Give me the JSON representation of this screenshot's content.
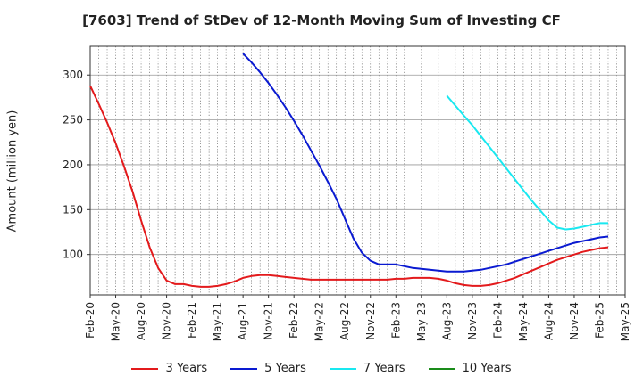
{
  "chart_data": {
    "type": "line",
    "title": "[7603]  Trend of StDev of 12-Month Moving Sum of Investing CF",
    "ylabel": "Amount (million yen)",
    "xlabel": "",
    "x_ticks": [
      "Feb-20",
      "May-20",
      "Aug-20",
      "Nov-20",
      "Feb-21",
      "May-21",
      "Aug-21",
      "Nov-21",
      "Feb-22",
      "May-22",
      "Aug-22",
      "Nov-22",
      "Feb-23",
      "May-23",
      "Aug-23",
      "Nov-23",
      "Feb-24",
      "May-24",
      "Aug-24",
      "Nov-24",
      "Feb-25",
      "May-25"
    ],
    "y_ticks": [
      100,
      150,
      200,
      250,
      300
    ],
    "ylim": [
      55,
      332
    ],
    "grid": true,
    "legend_position": "bottom",
    "series": [
      {
        "name": "3 Years",
        "color": "#e31a1c",
        "points": [
          [
            "2020-02",
            288
          ],
          [
            "2020-03",
            268
          ],
          [
            "2020-04",
            247
          ],
          [
            "2020-05",
            224
          ],
          [
            "2020-06",
            198
          ],
          [
            "2020-07",
            170
          ],
          [
            "2020-08",
            138
          ],
          [
            "2020-09",
            108
          ],
          [
            "2020-10",
            85
          ],
          [
            "2020-11",
            71
          ],
          [
            "2020-12",
            67
          ],
          [
            "2021-01",
            67
          ],
          [
            "2021-02",
            65
          ],
          [
            "2021-03",
            64
          ],
          [
            "2021-04",
            64
          ],
          [
            "2021-05",
            65
          ],
          [
            "2021-06",
            67
          ],
          [
            "2021-07",
            70
          ],
          [
            "2021-08",
            74
          ],
          [
            "2021-09",
            76
          ],
          [
            "2021-10",
            77
          ],
          [
            "2021-11",
            77
          ],
          [
            "2021-12",
            76
          ],
          [
            "2022-01",
            75
          ],
          [
            "2022-02",
            74
          ],
          [
            "2022-03",
            73
          ],
          [
            "2022-04",
            72
          ],
          [
            "2022-05",
            72
          ],
          [
            "2022-06",
            72
          ],
          [
            "2022-07",
            72
          ],
          [
            "2022-08",
            72
          ],
          [
            "2022-09",
            72
          ],
          [
            "2022-10",
            72
          ],
          [
            "2022-11",
            72
          ],
          [
            "2022-12",
            72
          ],
          [
            "2023-01",
            72
          ],
          [
            "2023-02",
            73
          ],
          [
            "2023-03",
            73
          ],
          [
            "2023-04",
            74
          ],
          [
            "2023-05",
            74
          ],
          [
            "2023-06",
            74
          ],
          [
            "2023-07",
            73
          ],
          [
            "2023-08",
            71
          ],
          [
            "2023-09",
            68
          ],
          [
            "2023-10",
            66
          ],
          [
            "2023-11",
            65
          ],
          [
            "2023-12",
            65
          ],
          [
            "2024-01",
            66
          ],
          [
            "2024-02",
            68
          ],
          [
            "2024-03",
            71
          ],
          [
            "2024-04",
            74
          ],
          [
            "2024-05",
            78
          ],
          [
            "2024-06",
            82
          ],
          [
            "2024-07",
            86
          ],
          [
            "2024-08",
            90
          ],
          [
            "2024-09",
            94
          ],
          [
            "2024-10",
            97
          ],
          [
            "2024-11",
            100
          ],
          [
            "2024-12",
            103
          ],
          [
            "2025-01",
            105
          ],
          [
            "2025-02",
            107
          ],
          [
            "2025-03",
            108
          ]
        ]
      },
      {
        "name": "5 Years",
        "color": "#0a1ad1",
        "points": [
          [
            "2021-08",
            324
          ],
          [
            "2021-09",
            314
          ],
          [
            "2021-10",
            303
          ],
          [
            "2021-11",
            291
          ],
          [
            "2021-12",
            278
          ],
          [
            "2022-01",
            264
          ],
          [
            "2022-02",
            249
          ],
          [
            "2022-03",
            233
          ],
          [
            "2022-04",
            216
          ],
          [
            "2022-05",
            199
          ],
          [
            "2022-06",
            181
          ],
          [
            "2022-07",
            162
          ],
          [
            "2022-08",
            140
          ],
          [
            "2022-09",
            118
          ],
          [
            "2022-10",
            102
          ],
          [
            "2022-11",
            93
          ],
          [
            "2022-12",
            89
          ],
          [
            "2023-01",
            89
          ],
          [
            "2023-02",
            89
          ],
          [
            "2023-03",
            87
          ],
          [
            "2023-04",
            85
          ],
          [
            "2023-05",
            84
          ],
          [
            "2023-06",
            83
          ],
          [
            "2023-07",
            82
          ],
          [
            "2023-08",
            81
          ],
          [
            "2023-09",
            81
          ],
          [
            "2023-10",
            81
          ],
          [
            "2023-11",
            82
          ],
          [
            "2023-12",
            83
          ],
          [
            "2024-01",
            85
          ],
          [
            "2024-02",
            87
          ],
          [
            "2024-03",
            89
          ],
          [
            "2024-04",
            92
          ],
          [
            "2024-05",
            95
          ],
          [
            "2024-06",
            98
          ],
          [
            "2024-07",
            101
          ],
          [
            "2024-08",
            104
          ],
          [
            "2024-09",
            107
          ],
          [
            "2024-10",
            110
          ],
          [
            "2024-11",
            113
          ],
          [
            "2024-12",
            115
          ],
          [
            "2025-01",
            117
          ],
          [
            "2025-02",
            119
          ],
          [
            "2025-03",
            120
          ]
        ]
      },
      {
        "name": "7 Years",
        "color": "#19e8f0",
        "points": [
          [
            "2023-08",
            277
          ],
          [
            "2023-09",
            266
          ],
          [
            "2023-10",
            255
          ],
          [
            "2023-11",
            244
          ],
          [
            "2023-12",
            232
          ],
          [
            "2024-01",
            220
          ],
          [
            "2024-02",
            208
          ],
          [
            "2024-03",
            196
          ],
          [
            "2024-04",
            184
          ],
          [
            "2024-05",
            172
          ],
          [
            "2024-06",
            160
          ],
          [
            "2024-07",
            149
          ],
          [
            "2024-08",
            138
          ],
          [
            "2024-09",
            130
          ],
          [
            "2024-10",
            128
          ],
          [
            "2024-11",
            129
          ],
          [
            "2024-12",
            131
          ],
          [
            "2025-01",
            133
          ],
          [
            "2025-02",
            135
          ],
          [
            "2025-03",
            135
          ]
        ]
      },
      {
        "name": "10 Years",
        "color": "#1a8c1a",
        "points": []
      }
    ]
  }
}
